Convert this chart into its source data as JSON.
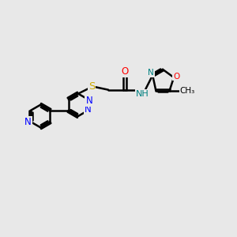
{
  "bg_color": "#e8e8e8",
  "bond_color": "#000000",
  "bond_width": 1.8,
  "atom_colors": {
    "N": "#0000ff",
    "O": "#ff0000",
    "S": "#ccaa00",
    "N_teal": "#008080"
  },
  "font_size": 8.5,
  "fig_width": 3.0,
  "fig_height": 3.0,
  "dpi": 100
}
